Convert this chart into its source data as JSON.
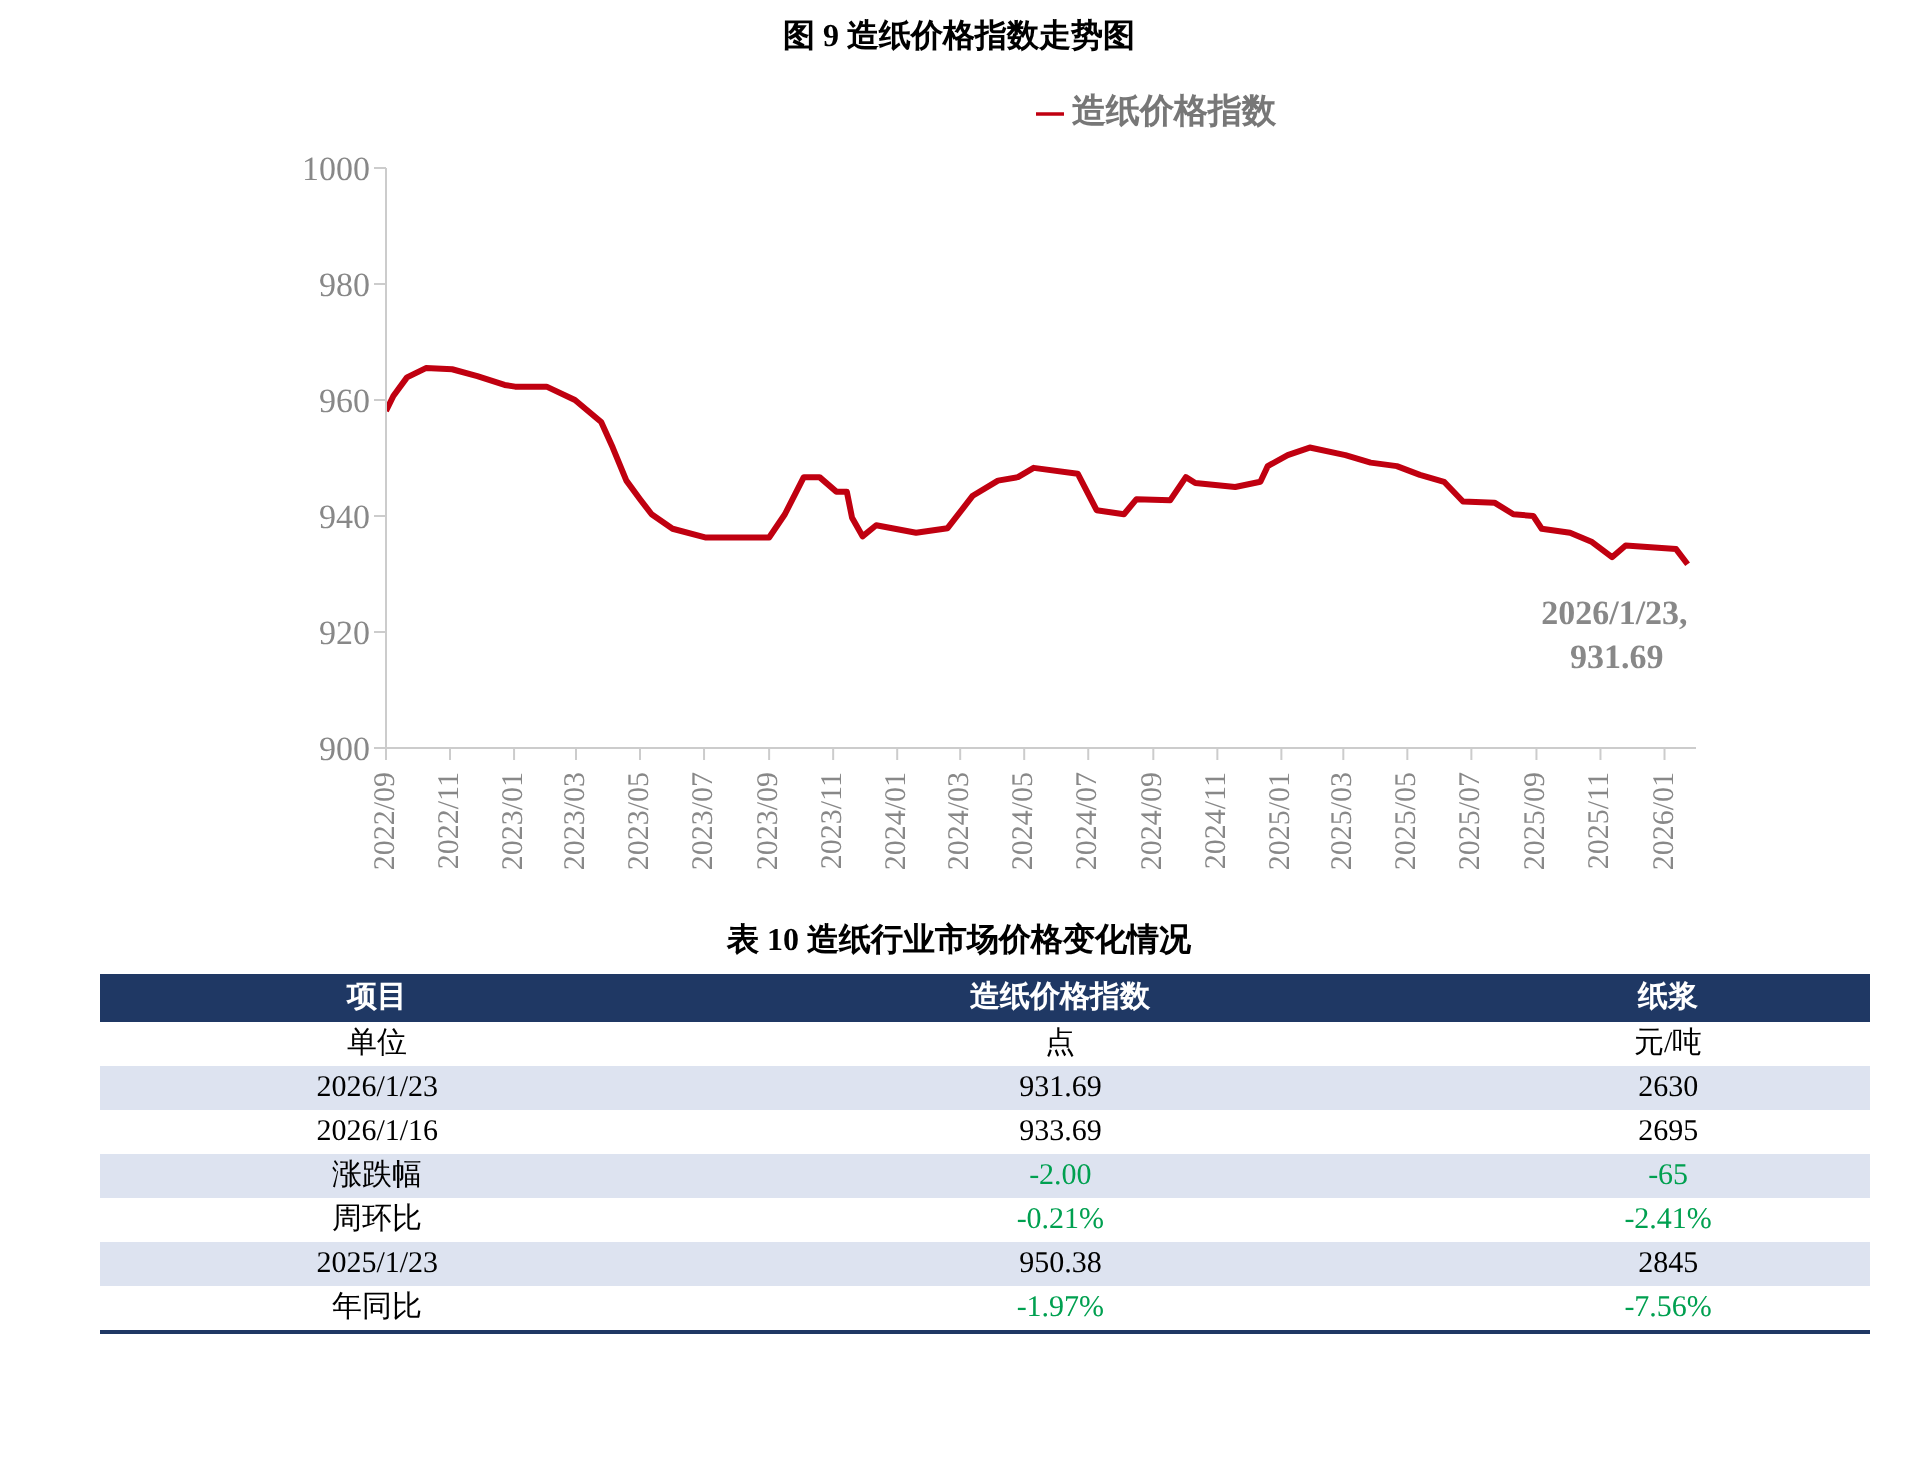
{
  "chart_data": [
    {
      "type": "line",
      "title": "图 9 造纸价格指数走势图",
      "legend": "top",
      "marker": "none",
      "grid": false,
      "x": [
        "2022-09-01",
        "2022-09-08",
        "2022-09-21",
        "2022-10-09",
        "2022-11-03",
        "2022-11-27",
        "2022-12-23",
        "2023-01-02",
        "2023-02-01",
        "2023-02-28",
        "2023-03-25",
        "2023-04-05",
        "2023-04-18",
        "2023-05-01",
        "2023-05-12",
        "2023-06-01",
        "2023-07-02",
        "2023-09-01",
        "2023-09-16",
        "2023-10-04",
        "2023-10-19",
        "2023-11-04",
        "2023-11-14",
        "2023-11-19",
        "2023-11-29",
        "2023-12-12",
        "2024-01-19",
        "2024-02-18",
        "2024-03-13",
        "2024-04-06",
        "2024-04-25",
        "2024-05-10",
        "2024-06-21",
        "2024-07-09",
        "2024-08-04",
        "2024-08-16",
        "2024-09-17",
        "2024-10-02",
        "2024-10-11",
        "2024-11-18",
        "2024-12-12",
        "2024-12-19",
        "2025-01-07",
        "2025-01-28",
        "2025-03-03",
        "2025-03-27",
        "2025-04-21",
        "2025-05-13",
        "2025-06-05",
        "2025-06-23",
        "2025-07-23",
        "2025-08-10",
        "2025-08-29",
        "2025-09-06",
        "2025-10-03",
        "2025-10-24",
        "2025-11-12",
        "2025-11-25",
        "2026-01-12",
        "2026-01-23"
      ],
      "series": [
        {
          "name": "造纸价格指数",
          "color": "#c00010",
          "line_style": "solid",
          "values": [
            958.1,
            960.7,
            963.9,
            965.5,
            965.3,
            964.1,
            962.6,
            962.3,
            962.3,
            960.0,
            956.2,
            951.8,
            946.1,
            942.9,
            940.3,
            937.8,
            936.3,
            936.3,
            940.3,
            946.7,
            946.7,
            944.2,
            944.2,
            939.7,
            936.5,
            938.4,
            937.1,
            937.9,
            943.5,
            946.1,
            946.7,
            948.3,
            947.3,
            941.0,
            940.3,
            942.9,
            942.7,
            946.7,
            945.7,
            945.0,
            945.9,
            948.6,
            950.5,
            951.8,
            950.5,
            949.2,
            948.6,
            947.1,
            945.9,
            942.5,
            942.3,
            940.3,
            940.0,
            937.8,
            937.1,
            935.5,
            932.9,
            934.9,
            934.3,
            931.69
          ]
        }
      ],
      "xlim": [
        "2022-09-01",
        "2026-01-31"
      ],
      "xticks": [
        {
          "value": "2022-09",
          "label": "2022/09"
        },
        {
          "value": "2022-11",
          "label": "2022/11"
        },
        {
          "value": "2023-01",
          "label": "2023/01"
        },
        {
          "value": "2023-03",
          "label": "2023/03"
        },
        {
          "value": "2023-05",
          "label": "2023/05"
        },
        {
          "value": "2023-07",
          "label": "2023/07"
        },
        {
          "value": "2023-09",
          "label": "2023/09"
        },
        {
          "value": "2023-11",
          "label": "2023/11"
        },
        {
          "value": "2024-01",
          "label": "2024/01"
        },
        {
          "value": "2024-03",
          "label": "2024/03"
        },
        {
          "value": "2024-05",
          "label": "2024/05"
        },
        {
          "value": "2024-07",
          "label": "2024/07"
        },
        {
          "value": "2024-09",
          "label": "2024/09"
        },
        {
          "value": "2024-11",
          "label": "2024/11"
        },
        {
          "value": "2025-01",
          "label": "2025/01"
        },
        {
          "value": "2025-03",
          "label": "2025/03"
        },
        {
          "value": "2025-05",
          "label": "2025/05"
        },
        {
          "value": "2025-07",
          "label": "2025/07"
        },
        {
          "value": "2025-09",
          "label": "2025/09"
        },
        {
          "value": "2025-11",
          "label": "2025/11"
        },
        {
          "value": "2026-01",
          "label": "2026/01"
        }
      ],
      "ylim": [
        900,
        1000
      ],
      "yticks": [
        900,
        920,
        940,
        960,
        980,
        1000
      ],
      "annotations": [
        {
          "text": "2026/1/23,\n931.69",
          "x": "2026-01-23",
          "y": 931.69
        }
      ]
    },
    {
      "type": "other",
      "title": "表 10 造纸行业市场价格变化情况",
      "ylabel": "项目",
      "categories": [
        "造纸价格指数",
        "纸浆"
      ],
      "y_categories": [
        "单位",
        "2026/1/23",
        "2026/1/16",
        "涨跌幅",
        "周环比",
        "2025/1/23",
        "年同比"
      ],
      "cell_labels": [
        [
          "点",
          "元/吨"
        ],
        [
          "931.69",
          "2630"
        ],
        [
          "933.69",
          "2695"
        ],
        [
          "-2.00",
          "-65"
        ],
        [
          "-0.21%",
          "-2.41%"
        ],
        [
          "950.38",
          "2845"
        ],
        [
          "-1.97%",
          "-7.56%"
        ]
      ],
      "color": "#00a050"
    }
  ]
}
